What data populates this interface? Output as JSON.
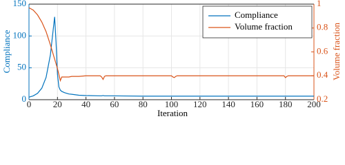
{
  "chart_data": {
    "type": "line",
    "xlabel": "Iteration",
    "ylabel": "Compliance",
    "y2label": "Volume fraction",
    "x": [
      0,
      3,
      6,
      9,
      12,
      15,
      17,
      18,
      19,
      20,
      21,
      22,
      23,
      25,
      28,
      30,
      35,
      40,
      50,
      51,
      52,
      53,
      54,
      60,
      80,
      100,
      101,
      102,
      103,
      104,
      120,
      140,
      160,
      179,
      180,
      181,
      182,
      200
    ],
    "series": [
      {
        "name": "Compliance",
        "color": "#0072bd",
        "axis": "y",
        "values": [
          4,
          6,
          10,
          18,
          35,
          70,
          110,
          130,
          90,
          40,
          20,
          15,
          13,
          11,
          9,
          8.5,
          7,
          6.5,
          6,
          6,
          6.5,
          6,
          6,
          6,
          5.5,
          5.5,
          5.5,
          5.5,
          5.5,
          5.5,
          5.5,
          5.5,
          5.5,
          5.5,
          5.5,
          5.5,
          5.5,
          5.5
        ]
      },
      {
        "name": "Volume fraction",
        "color": "#d95319",
        "axis": "y2",
        "values": [
          0.97,
          0.95,
          0.91,
          0.85,
          0.77,
          0.66,
          0.58,
          0.54,
          0.5,
          0.46,
          0.41,
          0.36,
          0.39,
          0.39,
          0.39,
          0.395,
          0.395,
          0.4,
          0.4,
          0.39,
          0.37,
          0.395,
          0.4,
          0.4,
          0.4,
          0.4,
          0.39,
          0.385,
          0.395,
          0.4,
          0.4,
          0.4,
          0.4,
          0.4,
          0.385,
          0.395,
          0.4,
          0.4
        ]
      }
    ],
    "xlim": [
      0,
      200
    ],
    "xticks": [
      0,
      20,
      40,
      60,
      80,
      100,
      120,
      140,
      160,
      180,
      200
    ],
    "ylim": [
      0,
      150
    ],
    "yticks": [
      0,
      50,
      100,
      150
    ],
    "y2lim": [
      0.2,
      1
    ],
    "y2ticks": [
      0.2,
      0.4,
      0.6,
      0.8,
      1
    ],
    "grid": true,
    "legend": "upper right"
  }
}
